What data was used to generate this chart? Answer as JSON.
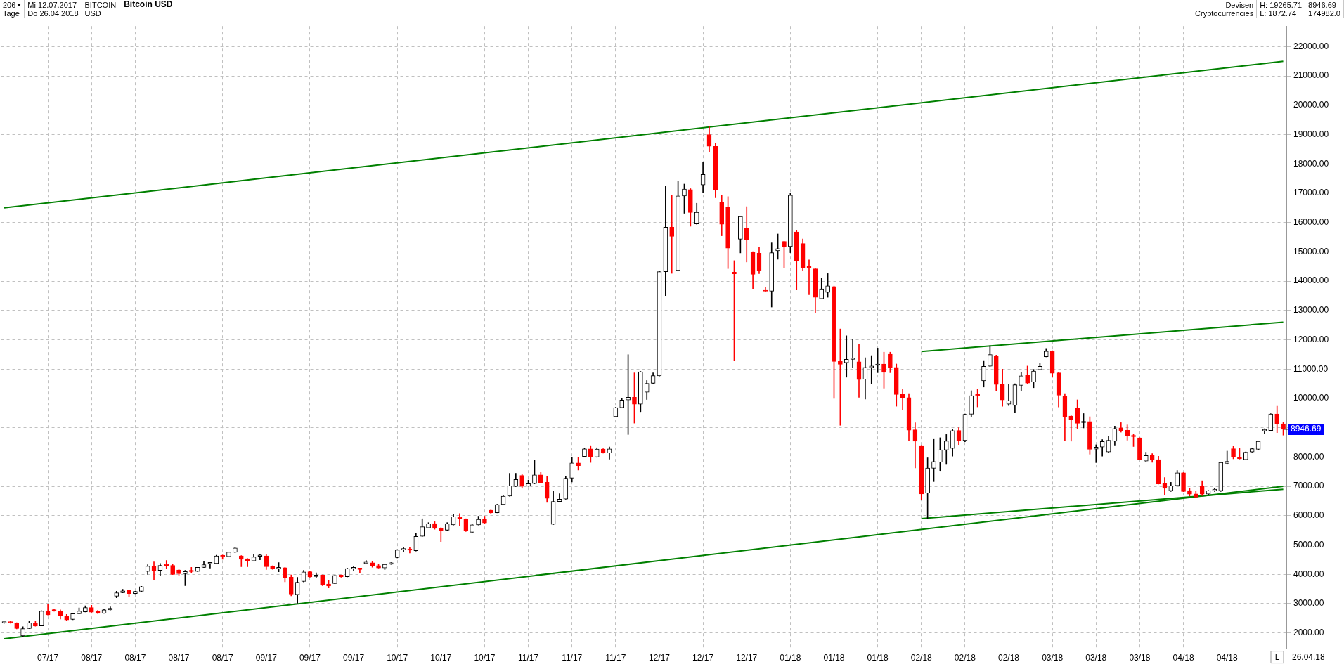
{
  "chart_data": {
    "type": "candlestick",
    "title": "Bitcoin USD",
    "annotations": [
      "206",
      "Tage",
      "Mi 12.07.2017",
      "Do 26.04.2018",
      "BITCOIN",
      "USD",
      "Devisen",
      "Cryptocurrencies",
      "H: 19265.71",
      "L: 1872.74",
      "8946.69",
      "174982.0",
      "L",
      "26.04.18",
      "8946.69"
    ],
    "categories": [
      null,
      null,
      null,
      null,
      null,
      null,
      null,
      "07/17",
      null,
      null,
      null,
      null,
      null,
      null,
      "08/17",
      null,
      null,
      null,
      null,
      null,
      null,
      "08/17",
      null,
      null,
      null,
      null,
      null,
      null,
      "08/17",
      null,
      null,
      null,
      null,
      null,
      null,
      "08/17",
      null,
      null,
      null,
      null,
      null,
      null,
      "09/17",
      null,
      null,
      null,
      null,
      null,
      null,
      "09/17",
      null,
      null,
      null,
      null,
      null,
      null,
      "09/17",
      null,
      null,
      null,
      null,
      null,
      null,
      "10/17",
      null,
      null,
      null,
      null,
      null,
      null,
      "10/17",
      null,
      null,
      null,
      null,
      null,
      null,
      "10/17",
      null,
      null,
      null,
      null,
      null,
      null,
      "11/17",
      null,
      null,
      null,
      null,
      null,
      null,
      "11/17",
      null,
      null,
      null,
      null,
      null,
      null,
      "11/17",
      null,
      null,
      null,
      null,
      null,
      null,
      "12/17",
      null,
      null,
      null,
      null,
      null,
      null,
      "12/17",
      null,
      null,
      null,
      null,
      null,
      null,
      "12/17",
      null,
      null,
      null,
      null,
      null,
      null,
      "01/18",
      null,
      null,
      null,
      null,
      null,
      null,
      "01/18",
      null,
      null,
      null,
      null,
      null,
      null,
      "01/18",
      null,
      null,
      null,
      null,
      null,
      null,
      "02/18",
      null,
      null,
      null,
      null,
      null,
      null,
      "02/18",
      null,
      null,
      null,
      null,
      null,
      null,
      "02/18",
      null,
      null,
      null,
      null,
      null,
      null,
      "03/18",
      null,
      null,
      null,
      null,
      null,
      null,
      "03/18",
      null,
      null,
      null,
      null,
      null,
      null,
      "03/18",
      null,
      null,
      null,
      null,
      null,
      null,
      "04/18",
      null,
      null,
      null,
      null,
      null,
      null,
      "04/18",
      null,
      null,
      null,
      null,
      null,
      null,
      null,
      null,
      null
    ],
    "ohlc": [
      [
        2340,
        2360,
        2330,
        2343
      ],
      [
        2360,
        2390,
        2330,
        2340
      ],
      [
        2343,
        2350,
        2140,
        2148
      ],
      [
        1899,
        2210,
        1872.74,
        2148
      ],
      [
        2148,
        2400,
        2148,
        2343
      ],
      [
        2343,
        2400,
        2230,
        2240
      ],
      [
        2240,
        2760,
        2240,
        2748
      ],
      [
        2748,
        2966,
        2610,
        2615
      ],
      [
        2795,
        2810,
        2735,
        2740
      ],
      [
        2748,
        2787,
        2475,
        2576
      ],
      [
        2576,
        2630,
        2420,
        2444
      ],
      [
        2460,
        2660,
        2450,
        2654
      ],
      [
        2654,
        2850,
        2650,
        2748
      ],
      [
        2716,
        2927,
        2710,
        2865
      ],
      [
        2865,
        2943,
        2700,
        2709
      ],
      [
        2732,
        2771,
        2660,
        2662
      ],
      [
        2670,
        2800,
        2665,
        2787
      ],
      [
        2787,
        2888,
        2780,
        2841
      ],
      [
        3254,
        3425,
        3200,
        3371
      ],
      [
        3371,
        3488,
        3365,
        3433
      ],
      [
        3449,
        3460,
        3246,
        3340
      ],
      [
        3340,
        3425,
        3335,
        3418
      ],
      [
        3418,
        3590,
        3410,
        3581
      ],
      [
        4095,
        4329,
        3994,
        4282
      ],
      [
        4282,
        4423,
        3823,
        4111
      ],
      [
        4134,
        4368,
        3940,
        4306
      ],
      [
        4320,
        4470,
        4190,
        4300
      ],
      [
        4306,
        4340,
        3990,
        3994
      ],
      [
        4150,
        4160,
        3970,
        4017
      ],
      [
        4017,
        4134,
        3612,
        4095
      ],
      [
        4100,
        4236,
        4040,
        4090
      ],
      [
        4095,
        4240,
        4090,
        4236
      ],
      [
        4236,
        4446,
        4230,
        4329
      ],
      [
        4360,
        4380,
        4210,
        4370
      ],
      [
        4369,
        4650,
        4360,
        4625
      ],
      [
        4610,
        4656,
        4510,
        4595
      ],
      [
        4600,
        4760,
        4595,
        4757
      ],
      [
        4750,
        4910,
        4740,
        4898
      ],
      [
        4625,
        4640,
        4259,
        4508
      ],
      [
        4532,
        4540,
        4259,
        4446
      ],
      [
        4454,
        4688,
        4450,
        4594
      ],
      [
        4610,
        4688,
        4493,
        4625
      ],
      [
        4625,
        4688,
        4166,
        4259
      ],
      [
        4275,
        4290,
        4170,
        4181
      ],
      [
        4190,
        4399,
        4088,
        4205
      ],
      [
        4228,
        4235,
        3745,
        3885
      ],
      [
        3901,
        3979,
        3262,
        3324
      ],
      [
        3309,
        3893,
        3013,
        3729
      ],
      [
        3753,
        4134,
        3740,
        4080
      ],
      [
        4088,
        4095,
        3900,
        3909
      ],
      [
        3924,
        4049,
        3870,
        3971
      ],
      [
        3971,
        3980,
        3612,
        3651
      ],
      [
        3667,
        3784,
        3535,
        3597
      ],
      [
        3683,
        3970,
        3675,
        3963
      ],
      [
        3971,
        3980,
        3900,
        3916
      ],
      [
        3916,
        4205,
        3910,
        4197
      ],
      [
        4190,
        4275,
        4134,
        4205
      ],
      [
        4205,
        4215,
        4049,
        4166
      ],
      [
        4370,
        4469,
        4360,
        4380
      ],
      [
        4392,
        4430,
        4244,
        4283
      ],
      [
        4298,
        4360,
        4210,
        4220
      ],
      [
        4220,
        4360,
        4166,
        4337
      ],
      [
        4345,
        4399,
        4340,
        4353
      ],
      [
        4571,
        4840,
        4560,
        4828
      ],
      [
        4830,
        4906,
        4758,
        4836
      ],
      [
        4836,
        4906,
        4727,
        4820
      ],
      [
        4804,
        5389,
        4795,
        5295
      ],
      [
        5295,
        5895,
        5290,
        5622
      ],
      [
        5583,
        5763,
        5575,
        5724
      ],
      [
        5731,
        5794,
        5537,
        5568
      ],
      [
        5576,
        5590,
        5116,
        5498
      ],
      [
        5505,
        5763,
        5500,
        5724
      ],
      [
        5686,
        6056,
        5680,
        5963
      ],
      [
        5925,
        6074,
        5667,
        5910
      ],
      [
        5889,
        5895,
        5460,
        5473
      ],
      [
        5436,
        5700,
        5420,
        5686
      ],
      [
        5686,
        5982,
        5680,
        5871
      ],
      [
        5871,
        5982,
        5740,
        5750
      ],
      [
        6186,
        6195,
        6056,
        6102
      ],
      [
        6102,
        6390,
        6095,
        6380
      ],
      [
        6380,
        6675,
        6375,
        6667
      ],
      [
        6667,
        7445,
        6660,
        7019
      ],
      [
        7000,
        7445,
        6990,
        7232
      ],
      [
        7371,
        7400,
        6936,
        7000
      ],
      [
        7010,
        7213,
        7000,
        7093
      ],
      [
        7093,
        7889,
        7085,
        7389
      ],
      [
        7389,
        7491,
        7120,
        7130
      ],
      [
        7139,
        7352,
        6454,
        6593
      ],
      [
        5704,
        6843,
        5700,
        6482
      ],
      [
        6482,
        6750,
        6475,
        6565
      ],
      [
        6565,
        7352,
        6560,
        7278
      ],
      [
        7278,
        7982,
        7148,
        7796
      ],
      [
        7796,
        7982,
        7556,
        7704
      ],
      [
        8019,
        8290,
        8010,
        8278
      ],
      [
        8278,
        8389,
        7815,
        7991
      ],
      [
        8000,
        8315,
        7990,
        8269
      ],
      [
        8269,
        8280,
        8130,
        8139
      ],
      [
        8139,
        8343,
        7926,
        8278
      ],
      [
        9380,
        9700,
        9370,
        9685
      ],
      [
        9685,
        10000,
        9680,
        9945
      ],
      [
        9945,
        11491,
        8769,
        10037
      ],
      [
        10037,
        10871,
        9157,
        9806
      ],
      [
        9806,
        10920,
        9547,
        10908
      ],
      [
        10213,
        10611,
        9963,
        10510
      ],
      [
        10519,
        10871,
        10510,
        10778
      ],
      [
        10769,
        14340,
        10760,
        14324
      ],
      [
        14324,
        17232,
        13509,
        15843
      ],
      [
        15842,
        16938,
        14265,
        15524
      ],
      [
        14366,
        17404,
        14360,
        16907
      ],
      [
        16907,
        17311,
        16316,
        17140
      ],
      [
        17124,
        17155,
        15873,
        16340
      ],
      [
        15951,
        16658,
        15940,
        16347
      ],
      [
        17280,
        18068,
        17008,
        17641
      ],
      [
        19000,
        19265.71,
        18400,
        18600
      ],
      [
        18600,
        18700,
        16845,
        17124
      ],
      [
        16705,
        16929,
        15547,
        15943
      ],
      [
        16518,
        16883,
        14428,
        15127
      ],
      [
        14304,
        14700,
        11281,
        14250
      ],
      [
        15430,
        16220,
        14964,
        16207
      ],
      [
        15819,
        16542,
        14653,
        15399
      ],
      [
        15003,
        15010,
        13744,
        14234
      ],
      [
        14956,
        15143,
        14257,
        14350
      ],
      [
        13713,
        13783,
        13650,
        13659
      ],
      [
        13659,
        15306,
        13115,
        14972
      ],
      [
        15034,
        15609,
        14747,
        15112
      ],
      [
        15353,
        15360,
        14444,
        15174
      ],
      [
        15182,
        17000,
        14972,
        16930
      ],
      [
        15679,
        15741,
        13706,
        14700
      ],
      [
        15283,
        15438,
        14350,
        14467
      ],
      [
        14490,
        14723,
        13535,
        14452
      ],
      [
        14420,
        14430,
        12913,
        13449
      ],
      [
        13402,
        14094,
        13390,
        13737
      ],
      [
        13612,
        14257,
        13449,
        13838
      ],
      [
        13814,
        13830,
        10000,
        11258
      ],
      [
        11281,
        12369,
        9082,
        11165
      ],
      [
        11219,
        12136,
        10722,
        11336
      ],
      [
        11330,
        12004,
        11064,
        11359
      ],
      [
        11250,
        11856,
        10038,
        10644
      ],
      [
        10652,
        11390,
        9976,
        11056
      ],
      [
        11048,
        11460,
        10489,
        11103
      ],
      [
        11126,
        11716,
        10877,
        11173
      ],
      [
        11173,
        11576,
        10349,
        10885
      ],
      [
        11507,
        11576,
        10877,
        11048
      ],
      [
        11057,
        11174,
        9733,
        10130
      ],
      [
        10138,
        10302,
        9616,
        10014
      ],
      [
        10029,
        10162,
        8549,
        8915
      ],
      [
        8931,
        9172,
        7630,
        8541
      ],
      [
        8393,
        8400,
        6555,
        6742
      ],
      [
        6773,
        7973,
        5885,
        7622
      ],
      [
        7614,
        8627,
        7162,
        7848
      ],
      [
        7825,
        8658,
        7536,
        8245
      ],
      [
        8238,
        8767,
        7770,
        8549
      ],
      [
        8292,
        8939,
        8027,
        8900
      ],
      [
        8907,
        9001,
        8424,
        8565
      ],
      [
        8565,
        9470,
        8518,
        9460
      ],
      [
        9460,
        10263,
        9359,
        10091
      ],
      [
        10100,
        10325,
        9710,
        10085
      ],
      [
        10598,
        11291,
        10388,
        11096
      ],
      [
        11096,
        11797,
        11090,
        11494
      ],
      [
        11455,
        11478,
        10263,
        10473
      ],
      [
        10497,
        10995,
        9733,
        9944
      ],
      [
        9804,
        10497,
        9757,
        9928
      ],
      [
        9764,
        10500,
        9523,
        10465
      ],
      [
        10442,
        10886,
        10263,
        10769
      ],
      [
        10793,
        11104,
        10497,
        10520
      ],
      [
        10559,
        10990,
        10364,
        10933
      ],
      [
        10980,
        11190,
        10970,
        11096
      ],
      [
        11424,
        11704,
        11415,
        11611
      ],
      [
        11618,
        11625,
        10722,
        10855
      ],
      [
        10870,
        10880,
        9710,
        10107
      ],
      [
        10076,
        10162,
        8549,
        9359
      ],
      [
        9398,
        9410,
        8541,
        9266
      ],
      [
        9655,
        9951,
        8978,
        9149
      ],
      [
        9172,
        9484,
        8993,
        9203
      ],
      [
        9211,
        9375,
        8097,
        8261
      ],
      [
        8269,
        8417,
        7809,
        8339
      ],
      [
        8339,
        8596,
        8027,
        8526
      ],
      [
        8175,
        8697,
        8160,
        8573
      ],
      [
        8537,
        9058,
        8404,
        8972
      ],
      [
        8995,
        9174,
        8848,
        8902
      ],
      [
        8910,
        9096,
        8575,
        8715
      ],
      [
        8731,
        8785,
        8358,
        8692
      ],
      [
        8653,
        8660,
        7915,
        7922
      ],
      [
        7860,
        8163,
        7850,
        8047
      ],
      [
        8047,
        8117,
        7821,
        7899
      ],
      [
        7914,
        8023,
        7075,
        7082
      ],
      [
        7090,
        7300,
        6709,
        6935
      ],
      [
        6849,
        7137,
        6826,
        7020
      ],
      [
        7020,
        7541,
        7010,
        7463
      ],
      [
        7463,
        7470,
        6820,
        6826
      ],
      [
        6857,
        6935,
        6670,
        6732
      ],
      [
        6740,
        6849,
        6625,
        6631
      ],
      [
        6997,
        7191,
        6686,
        6733
      ],
      [
        6733,
        6860,
        6720,
        6849
      ],
      [
        6849,
        6935,
        6826,
        6904
      ],
      [
        6849,
        7830,
        6826,
        7813
      ],
      [
        7782,
        8202,
        7775,
        7852
      ],
      [
        8280,
        8381,
        7938,
        8008
      ],
      [
        8000,
        8288,
        7930,
        7938
      ],
      [
        7907,
        8175,
        7900,
        8163
      ],
      [
        8171,
        8290,
        8165,
        8280
      ],
      [
        8264,
        8545,
        8255,
        8537
      ],
      [
        8895,
        8964,
        8785,
        8910
      ],
      [
        8902,
        9480,
        8895,
        9470
      ],
      [
        9470,
        9734,
        8832,
        9135
      ],
      [
        9135,
        9198,
        8747,
        8946.69
      ]
    ],
    "series": [
      {
        "type": "line",
        "color": "#008000",
        "values": [
          16500,
          null,
          null,
          null,
          null,
          null,
          null,
          null,
          null,
          null,
          null,
          null,
          null,
          null,
          null,
          null,
          null,
          null,
          null,
          null,
          null,
          null,
          null,
          null,
          null,
          null,
          null,
          null,
          null,
          null,
          null,
          null,
          null,
          null,
          null,
          null,
          null,
          null,
          null,
          null,
          null,
          null,
          null,
          null,
          null,
          null,
          null,
          null,
          null,
          null,
          null,
          null,
          null,
          null,
          null,
          null,
          null,
          null,
          null,
          null,
          null,
          null,
          null,
          null,
          null,
          null,
          null,
          null,
          null,
          null,
          null,
          null,
          null,
          null,
          null,
          null,
          null,
          null,
          null,
          null,
          null,
          null,
          null,
          null,
          null,
          null,
          null,
          null,
          null,
          null,
          null,
          null,
          null,
          null,
          null,
          null,
          null,
          null,
          null,
          null,
          null,
          null,
          null,
          null,
          null,
          null,
          null,
          null,
          null,
          null,
          null,
          null,
          null,
          null,
          null,
          null,
          null,
          null,
          null,
          null,
          null,
          null,
          null,
          null,
          null,
          null,
          null,
          null,
          null,
          null,
          null,
          null,
          null,
          null,
          null,
          null,
          null,
          null,
          null,
          null,
          null,
          null,
          null,
          null,
          null,
          null,
          null,
          null,
          null,
          null,
          null,
          null,
          null,
          null,
          null,
          null,
          null,
          null,
          null,
          null,
          null,
          null,
          null,
          null,
          null,
          null,
          null,
          null,
          null,
          null,
          null,
          null,
          null,
          null,
          null,
          null,
          null,
          null,
          null,
          null,
          null,
          null,
          null,
          null,
          null,
          null,
          null,
          null,
          null,
          null,
          null,
          null,
          null,
          null,
          null,
          null,
          null,
          null,
          null,
          null,
          null,
          null,
          null,
          null,
          null,
          21500
        ]
      },
      {
        "type": "line",
        "color": "#008000",
        "values": [
          1800,
          null,
          null,
          null,
          null,
          null,
          null,
          null,
          null,
          null,
          null,
          null,
          null,
          null,
          null,
          null,
          null,
          null,
          null,
          null,
          null,
          null,
          null,
          null,
          null,
          null,
          null,
          null,
          null,
          null,
          null,
          null,
          null,
          null,
          null,
          null,
          null,
          null,
          null,
          null,
          null,
          null,
          null,
          null,
          null,
          null,
          null,
          null,
          null,
          null,
          null,
          null,
          null,
          null,
          null,
          null,
          null,
          null,
          null,
          null,
          null,
          null,
          null,
          null,
          null,
          null,
          null,
          null,
          null,
          null,
          null,
          null,
          null,
          null,
          null,
          null,
          null,
          null,
          null,
          null,
          null,
          null,
          null,
          null,
          null,
          null,
          null,
          null,
          null,
          null,
          null,
          null,
          null,
          null,
          null,
          null,
          null,
          null,
          null,
          null,
          null,
          null,
          null,
          null,
          null,
          null,
          null,
          null,
          null,
          null,
          null,
          null,
          null,
          null,
          null,
          null,
          null,
          null,
          null,
          null,
          null,
          null,
          null,
          null,
          null,
          null,
          null,
          null,
          null,
          null,
          null,
          null,
          null,
          null,
          null,
          null,
          null,
          null,
          null,
          null,
          null,
          null,
          null,
          null,
          null,
          null,
          null,
          null,
          null,
          null,
          null,
          null,
          null,
          null,
          null,
          null,
          null,
          null,
          null,
          null,
          null,
          null,
          null,
          null,
          null,
          null,
          null,
          null,
          null,
          null,
          null,
          null,
          null,
          null,
          null,
          null,
          null,
          null,
          null,
          null,
          null,
          null,
          null,
          null,
          null,
          null,
          null,
          null,
          null,
          null,
          null,
          null,
          null,
          null,
          null,
          null,
          null,
          null,
          null,
          null,
          null,
          null,
          null,
          null,
          null,
          7000
        ]
      },
      {
        "type": "line",
        "color": "#008000",
        "values": [
          null,
          null,
          null,
          null,
          null,
          null,
          null,
          null,
          null,
          null,
          null,
          null,
          null,
          null,
          null,
          null,
          null,
          null,
          null,
          null,
          null,
          null,
          null,
          null,
          null,
          null,
          null,
          null,
          null,
          null,
          null,
          null,
          null,
          null,
          null,
          null,
          null,
          null,
          null,
          null,
          null,
          null,
          null,
          null,
          null,
          null,
          null,
          null,
          null,
          null,
          null,
          null,
          null,
          null,
          null,
          null,
          null,
          null,
          null,
          null,
          null,
          null,
          null,
          null,
          null,
          null,
          null,
          null,
          null,
          null,
          null,
          null,
          null,
          null,
          null,
          null,
          null,
          null,
          null,
          null,
          null,
          null,
          null,
          null,
          null,
          null,
          null,
          null,
          null,
          null,
          null,
          null,
          null,
          null,
          null,
          null,
          null,
          null,
          null,
          null,
          null,
          null,
          null,
          null,
          null,
          null,
          null,
          null,
          null,
          null,
          null,
          null,
          null,
          null,
          null,
          null,
          null,
          null,
          null,
          null,
          null,
          null,
          null,
          null,
          null,
          null,
          null,
          null,
          null,
          null,
          null,
          null,
          null,
          null,
          null,
          null,
          null,
          null,
          null,
          null,
          null,
          null,
          null,
          null,
          null,
          null,
          null,
          11600,
          null,
          null,
          null,
          null,
          null,
          null,
          null,
          null,
          null,
          null,
          null,
          null,
          null,
          null,
          null,
          null,
          null,
          null,
          null,
          null,
          null,
          null,
          null,
          null,
          null,
          null,
          null,
          null,
          null,
          null,
          null,
          null,
          null,
          null,
          null,
          null,
          null,
          null,
          null,
          null,
          null,
          null,
          null,
          null,
          null,
          null,
          null,
          null,
          null,
          null,
          null,
          null,
          null,
          null,
          null,
          null,
          null,
          12600
        ]
      },
      {
        "type": "line",
        "color": "#008000",
        "values": [
          null,
          null,
          null,
          null,
          null,
          null,
          null,
          null,
          null,
          null,
          null,
          null,
          null,
          null,
          null,
          null,
          null,
          null,
          null,
          null,
          null,
          null,
          null,
          null,
          null,
          null,
          null,
          null,
          null,
          null,
          null,
          null,
          null,
          null,
          null,
          null,
          null,
          null,
          null,
          null,
          null,
          null,
          null,
          null,
          null,
          null,
          null,
          null,
          null,
          null,
          null,
          null,
          null,
          null,
          null,
          null,
          null,
          null,
          null,
          null,
          null,
          null,
          null,
          null,
          null,
          null,
          null,
          null,
          null,
          null,
          null,
          null,
          null,
          null,
          null,
          null,
          null,
          null,
          null,
          null,
          null,
          null,
          null,
          null,
          null,
          null,
          null,
          null,
          null,
          null,
          null,
          null,
          null,
          null,
          null,
          null,
          null,
          null,
          null,
          null,
          null,
          null,
          null,
          null,
          null,
          null,
          null,
          null,
          null,
          null,
          null,
          null,
          null,
          null,
          null,
          null,
          null,
          null,
          null,
          null,
          null,
          null,
          null,
          null,
          null,
          null,
          null,
          null,
          null,
          null,
          null,
          null,
          null,
          null,
          null,
          null,
          null,
          null,
          null,
          null,
          null,
          null,
          null,
          null,
          null,
          null,
          null,
          5900,
          null,
          null,
          null,
          null,
          null,
          null,
          null,
          null,
          null,
          null,
          null,
          null,
          null,
          null,
          null,
          null,
          null,
          null,
          null,
          null,
          null,
          null,
          null,
          null,
          null,
          null,
          null,
          null,
          null,
          null,
          null,
          null,
          null,
          null,
          null,
          null,
          null,
          null,
          null,
          null,
          null,
          null,
          null,
          null,
          null,
          null,
          null,
          null,
          null,
          null,
          null,
          null,
          null,
          null,
          null,
          null,
          null,
          6900
        ]
      }
    ],
    "ylim": [
      1450,
      22700
    ],
    "yticks": [
      {
        "value": 2000,
        "label": "2000.00"
      },
      {
        "value": 3000,
        "label": "3000.00"
      },
      {
        "value": 4000,
        "label": "4000.00"
      },
      {
        "value": 5000,
        "label": "5000.00"
      },
      {
        "value": 6000,
        "label": "6000.00"
      },
      {
        "value": 7000,
        "label": "7000.00"
      },
      {
        "value": 8000,
        "label": "8000.00"
      },
      {
        "value": 9000,
        "label": null
      },
      {
        "value": 10000,
        "label": "10000.00"
      },
      {
        "value": 11000,
        "label": "11000.00"
      },
      {
        "value": 12000,
        "label": "12000.00"
      },
      {
        "value": 13000,
        "label": "13000.00"
      },
      {
        "value": 14000,
        "label": "14000.00"
      },
      {
        "value": 15000,
        "label": "15000.00"
      },
      {
        "value": 16000,
        "label": "16000.00"
      },
      {
        "value": 17000,
        "label": "17000.00"
      },
      {
        "value": 18000,
        "label": "18000.00"
      },
      {
        "value": 19000,
        "label": "19000.00"
      },
      {
        "value": 20000,
        "label": "20000.00"
      },
      {
        "value": 21000,
        "label": "21000.00"
      },
      {
        "value": 22000,
        "label": "22000.00"
      }
    ],
    "grid": true,
    "legend": false
  }
}
